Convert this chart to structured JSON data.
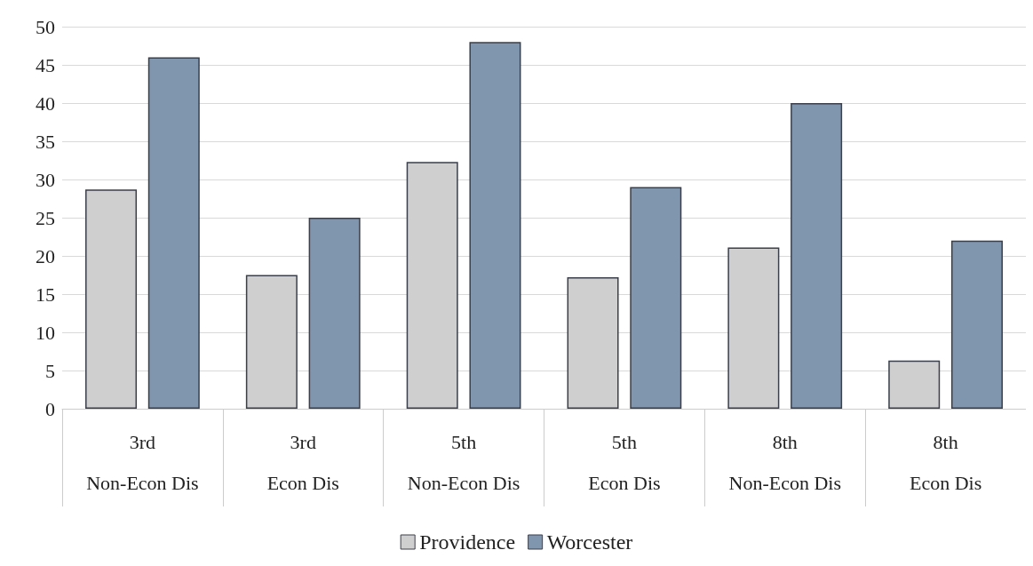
{
  "chart_data": {
    "type": "bar",
    "categories": [
      "3rd\nNon-Econ Dis",
      "3rd\nEcon Dis",
      "5th\nNon-Econ Dis",
      "5th\nEcon Dis",
      "8th\nNon-Econ Dis",
      "8th\nEcon Dis"
    ],
    "series": [
      {
        "name": "Providence",
        "color": "#d0cfd0",
        "values": [
          28.7,
          17.5,
          32.3,
          17.2,
          21.1,
          6.3
        ]
      },
      {
        "name": "Worcester",
        "color": "#8095ae",
        "values": [
          46,
          25,
          48,
          29,
          40,
          22
        ]
      }
    ],
    "ylim": [
      0,
      50
    ],
    "yticks": [
      0,
      5,
      10,
      15,
      20,
      25,
      30,
      35,
      40,
      45,
      50
    ],
    "grid": "y",
    "legend": "bottom"
  }
}
